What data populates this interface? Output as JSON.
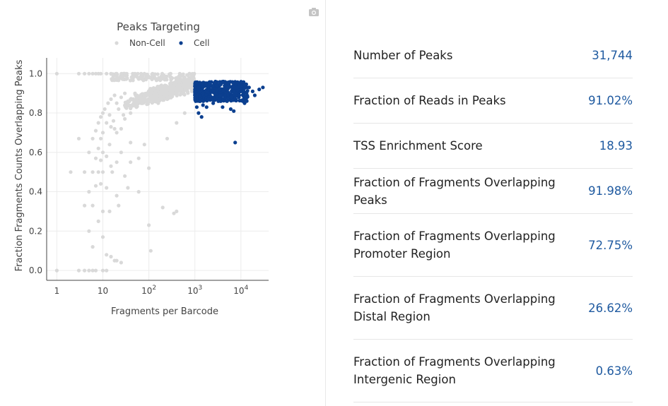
{
  "chart_data": {
    "type": "scatter",
    "title": "Peaks Targeting",
    "xlabel": "Fragments per Barcode",
    "ylabel": "Fraction Fragments Counts Overlapping Peaks",
    "x_scale": "log",
    "xlim": [
      0.6,
      40000
    ],
    "ylim": [
      -0.05,
      1.08
    ],
    "x_ticks": [
      {
        "value": 1,
        "base": "1",
        "exp": ""
      },
      {
        "value": 10,
        "base": "10",
        "exp": ""
      },
      {
        "value": 100,
        "base": "10",
        "exp": "2"
      },
      {
        "value": 1000,
        "base": "10",
        "exp": "3"
      },
      {
        "value": 10000,
        "base": "10",
        "exp": "4"
      }
    ],
    "y_ticks": [
      "0.0",
      "0.2",
      "0.4",
      "0.6",
      "0.8",
      "1.0"
    ],
    "grid": true,
    "legend_position": "top",
    "series": [
      {
        "name": "Non-Cell",
        "color": "#d9d9d9",
        "points": [
          [
            1,
            1.0
          ],
          [
            3,
            1.0
          ],
          [
            4,
            1.0
          ],
          [
            5,
            1.0
          ],
          [
            6,
            1.0
          ],
          [
            7,
            1.0
          ],
          [
            8,
            1.0
          ],
          [
            9,
            1.0
          ],
          [
            12,
            1.0
          ],
          [
            15,
            1.0
          ],
          [
            20,
            1.0
          ],
          [
            30,
            1.0
          ],
          [
            50,
            1.0
          ],
          [
            80,
            1.0
          ],
          [
            120,
            1.0
          ],
          [
            200,
            0.99
          ],
          [
            300,
            0.98
          ],
          [
            500,
            0.97
          ],
          [
            800,
            0.96
          ],
          [
            1,
            0.0
          ],
          [
            3,
            0.0
          ],
          [
            4,
            0.0
          ],
          [
            5,
            0.0
          ],
          [
            6,
            0.0
          ],
          [
            7,
            0.0
          ],
          [
            10,
            0.0
          ],
          [
            12,
            0.0
          ],
          [
            2,
            0.5
          ],
          [
            4,
            0.33
          ],
          [
            3,
            0.67
          ],
          [
            4,
            0.5
          ],
          [
            5,
            0.4
          ],
          [
            5,
            0.6
          ],
          [
            5,
            0.2
          ],
          [
            6,
            0.67
          ],
          [
            6,
            0.5
          ],
          [
            6,
            0.33
          ],
          [
            7,
            0.57
          ],
          [
            7,
            0.43
          ],
          [
            7,
            0.71
          ],
          [
            8,
            0.75
          ],
          [
            8,
            0.62
          ],
          [
            8,
            0.5
          ],
          [
            8,
            0.25
          ],
          [
            9,
            0.78
          ],
          [
            9,
            0.67
          ],
          [
            9,
            0.56
          ],
          [
            9,
            0.44
          ],
          [
            10,
            0.8
          ],
          [
            10,
            0.7
          ],
          [
            10,
            0.6
          ],
          [
            10,
            0.5
          ],
          [
            11,
            0.82
          ],
          [
            12,
            0.75
          ],
          [
            12,
            0.58
          ],
          [
            12,
            0.42
          ],
          [
            13,
            0.85
          ],
          [
            14,
            0.79
          ],
          [
            14,
            0.64
          ],
          [
            15,
            0.87
          ],
          [
            15,
            0.73
          ],
          [
            15,
            0.53
          ],
          [
            16,
            0.5
          ],
          [
            17,
            0.76
          ],
          [
            18,
            0.89
          ],
          [
            18,
            0.72
          ],
          [
            20,
            0.85
          ],
          [
            20,
            0.7
          ],
          [
            20,
            0.55
          ],
          [
            22,
            0.82
          ],
          [
            25,
            0.88
          ],
          [
            25,
            0.72
          ],
          [
            25,
            0.6
          ],
          [
            28,
            0.79
          ],
          [
            30,
            0.9
          ],
          [
            30,
            0.77
          ],
          [
            35,
            0.86
          ],
          [
            40,
            0.8
          ],
          [
            40,
            0.65
          ],
          [
            45,
            0.84
          ],
          [
            50,
            0.9
          ],
          [
            60,
            0.88
          ],
          [
            70,
            0.85
          ],
          [
            90,
            0.86
          ],
          [
            120,
            0.87
          ],
          [
            160,
            0.85
          ],
          [
            250,
            0.87
          ],
          [
            330,
            0.9
          ],
          [
            6,
            0.12
          ],
          [
            10,
            0.17
          ],
          [
            12,
            0.08
          ],
          [
            15,
            0.07
          ],
          [
            18,
            0.05
          ],
          [
            20,
            0.05
          ],
          [
            25,
            0.04
          ],
          [
            10,
            0.3
          ],
          [
            14,
            0.3
          ],
          [
            20,
            0.38
          ],
          [
            22,
            0.33
          ],
          [
            30,
            0.48
          ],
          [
            35,
            0.42
          ],
          [
            40,
            0.55
          ],
          [
            60,
            0.57
          ],
          [
            80,
            0.64
          ],
          [
            60,
            0.4
          ],
          [
            100,
            0.52
          ],
          [
            100,
            0.23
          ],
          [
            110,
            0.1
          ],
          [
            200,
            0.32
          ],
          [
            350,
            0.29
          ],
          [
            400,
            0.3
          ],
          [
            250,
            0.67
          ],
          [
            400,
            0.75
          ],
          [
            600,
            0.8
          ]
        ],
        "bands": [
          {
            "x_from": 30,
            "x_to": 1000,
            "y_at_from": 0.84,
            "y_at_to": 0.93
          },
          {
            "x_from": 50,
            "x_to": 1000,
            "y_at_from": 0.87,
            "y_at_to": 0.95
          },
          {
            "x_from": 100,
            "x_to": 1000,
            "y_at_from": 0.9,
            "y_at_to": 0.96
          }
        ]
      },
      {
        "name": "Cell",
        "color": "#0b3f8f",
        "points": [
          [
            1100,
            0.83
          ],
          [
            1200,
            0.8
          ],
          [
            1300,
            0.86
          ],
          [
            1400,
            0.78
          ],
          [
            1500,
            0.84
          ],
          [
            1800,
            0.83
          ],
          [
            2000,
            0.87
          ],
          [
            2500,
            0.85
          ],
          [
            3000,
            0.88
          ],
          [
            4000,
            0.83
          ],
          [
            4500,
            0.89
          ],
          [
            5000,
            0.86
          ],
          [
            6000,
            0.82
          ],
          [
            7000,
            0.81
          ],
          [
            7500,
            0.65
          ],
          [
            8000,
            0.9
          ],
          [
            9000,
            0.88
          ],
          [
            10000,
            0.91
          ],
          [
            12000,
            0.85
          ],
          [
            15000,
            0.93
          ],
          [
            18000,
            0.91
          ],
          [
            20000,
            0.89
          ],
          [
            25000,
            0.92
          ],
          [
            30000,
            0.93
          ],
          [
            1500,
            0.9
          ],
          [
            2500,
            0.91
          ],
          [
            3500,
            0.92
          ],
          [
            5000,
            0.93
          ],
          [
            1200,
            0.92
          ]
        ],
        "cluster": {
          "x_from": 1000,
          "x_to": 14000,
          "y_min": 0.86,
          "y_max": 0.96
        }
      }
    ]
  },
  "metrics": [
    {
      "label": "Number of Peaks",
      "value": "31,744"
    },
    {
      "label": "Fraction of Reads in Peaks",
      "value": "91.02%"
    },
    {
      "label": "TSS Enrichment Score",
      "value": "18.93"
    },
    {
      "label": "Fraction of Fragments Overlapping Peaks",
      "value": "91.98%"
    },
    {
      "label": "Fraction of Fragments Overlapping Promoter Region",
      "value": "72.75%"
    },
    {
      "label": "Fraction of Fragments Overlapping Distal Region",
      "value": "26.62%"
    },
    {
      "label": "Fraction of Fragments Overlapping Intergenic Region",
      "value": "0.63%"
    }
  ],
  "toolbar": {
    "camera_icon": "camera-icon"
  }
}
